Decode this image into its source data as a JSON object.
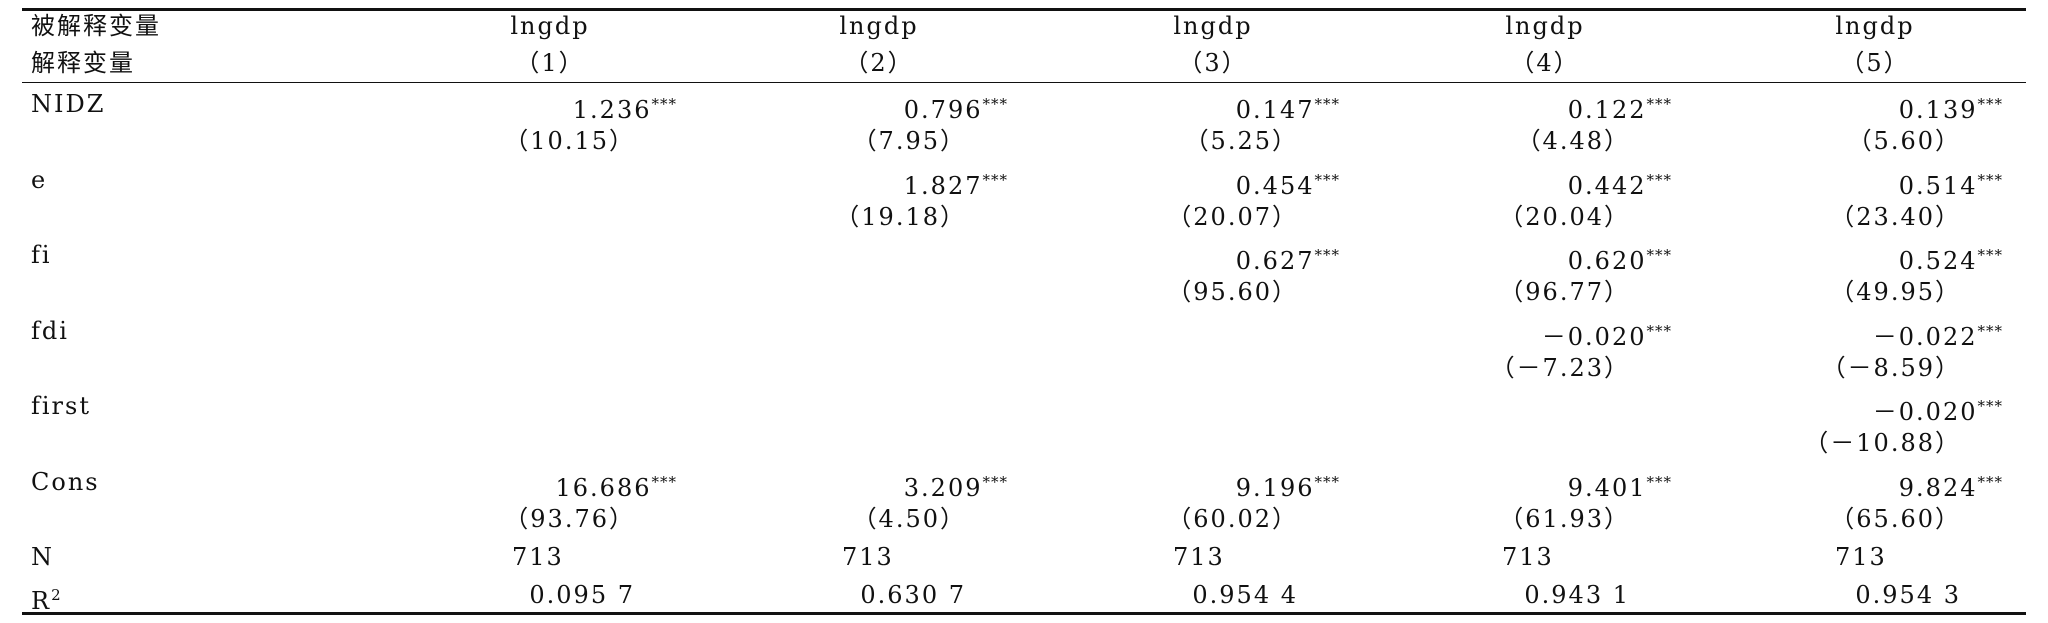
{
  "table": {
    "header": {
      "dep_label": "被解释变量",
      "exp_label": "解释变量",
      "columns": [
        {
          "dep": "lngdp",
          "num": "（1）"
        },
        {
          "dep": "lngdp",
          "num": "（2）"
        },
        {
          "dep": "lngdp",
          "num": "（3）"
        },
        {
          "dep": "lngdp",
          "num": "（4）"
        },
        {
          "dep": "lngdp",
          "num": "（5）"
        }
      ]
    },
    "rows": [
      {
        "label": "NIDZ",
        "cells": [
          {
            "coef": "1.236",
            "stars": "***",
            "t": "（10.15）"
          },
          {
            "coef": "0.796",
            "stars": "***",
            "t": "（7.95）"
          },
          {
            "coef": "0.147",
            "stars": "***",
            "t": "（5.25）"
          },
          {
            "coef": "0.122",
            "stars": "***",
            "t": "（4.48）"
          },
          {
            "coef": "0.139",
            "stars": "***",
            "t": "（5.60）"
          }
        ]
      },
      {
        "label": "e",
        "cells": [
          null,
          {
            "coef": "1.827",
            "stars": "***",
            "t": "（19.18）"
          },
          {
            "coef": "0.454",
            "stars": "***",
            "t": "（20.07）"
          },
          {
            "coef": "0.442",
            "stars": "***",
            "t": "（20.04）"
          },
          {
            "coef": "0.514",
            "stars": "***",
            "t": "（23.40）"
          }
        ]
      },
      {
        "label": "fi",
        "cells": [
          null,
          null,
          {
            "coef": "0.627",
            "stars": "***",
            "t": "（95.60）"
          },
          {
            "coef": "0.620",
            "stars": "***",
            "t": "（96.77）"
          },
          {
            "coef": "0.524",
            "stars": "***",
            "t": "（49.95）"
          }
        ]
      },
      {
        "label": "fdi",
        "cells": [
          null,
          null,
          null,
          {
            "coef": "－0.020",
            "stars": "***",
            "t": "（－7.23）"
          },
          {
            "coef": "－0.022",
            "stars": "***",
            "t": "（－8.59）"
          }
        ]
      },
      {
        "label": "first",
        "cells": [
          null,
          null,
          null,
          null,
          {
            "coef": "－0.020",
            "stars": "***",
            "t": "（－10.88）"
          }
        ]
      },
      {
        "label": "Cons",
        "cells": [
          {
            "coef": "16.686",
            "stars": "***",
            "t": "（93.76）"
          },
          {
            "coef": "3.209",
            "stars": "***",
            "t": "（4.50）"
          },
          {
            "coef": "9.196",
            "stars": "***",
            "t": "（60.02）"
          },
          {
            "coef": "9.401",
            "stars": "***",
            "t": "（61.93）"
          },
          {
            "coef": "9.824",
            "stars": "***",
            "t": "（65.60）"
          }
        ]
      }
    ],
    "n_row": {
      "label": "N",
      "values": [
        "713",
        "713",
        "713",
        "713",
        "713"
      ]
    },
    "r2_row": {
      "label": "R",
      "label_sup": "2",
      "values": [
        "0.095 7",
        "0.630 7",
        "0.954 4",
        "0.943 1",
        "0.954 3"
      ]
    }
  }
}
